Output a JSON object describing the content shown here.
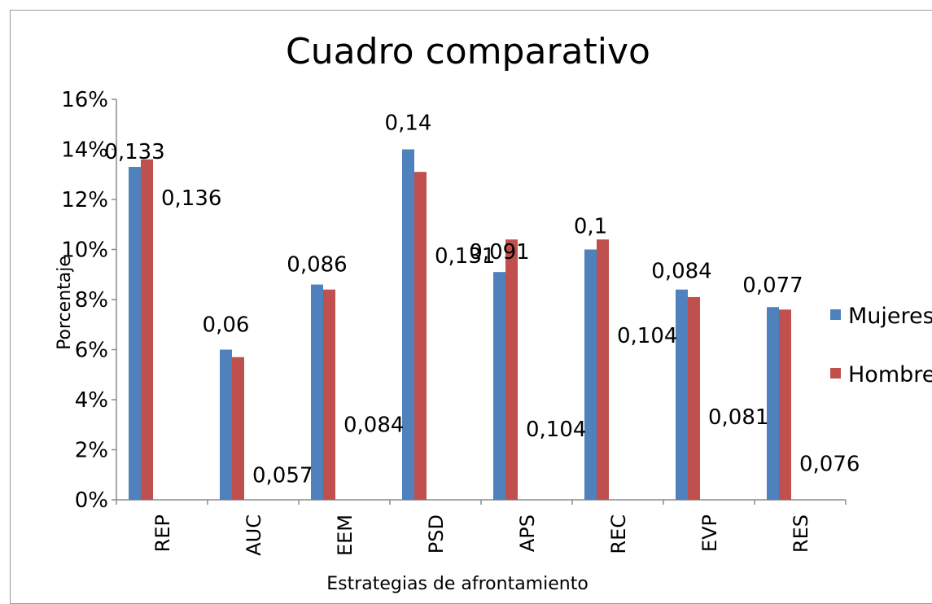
{
  "chart_data": {
    "type": "bar",
    "title": "Cuadro comparativo",
    "xlabel": "Estrategias de afrontamiento",
    "ylabel": "Porcentaje",
    "categories": [
      "REP",
      "AUC",
      "EEM",
      "PSD",
      "APS",
      "REC",
      "EVP",
      "RES"
    ],
    "ylim": [
      0,
      0.16
    ],
    "yticks": [
      "0%",
      "2%",
      "4%",
      "6%",
      "8%",
      "10%",
      "12%",
      "14%",
      "16%"
    ],
    "grid": false,
    "legend_position": "right",
    "series": [
      {
        "name": "Mujeres",
        "color": "#4f81bd",
        "values": [
          0.133,
          0.06,
          0.086,
          0.14,
          0.091,
          0.1,
          0.084,
          0.077
        ],
        "labels": [
          "0,133",
          "0,06",
          "0,086",
          "0,14",
          "0,091",
          "0,1",
          "0,084",
          "0,077"
        ]
      },
      {
        "name": "Hombres",
        "color": "#c0504d",
        "values": [
          0.136,
          0.057,
          0.084,
          0.131,
          0.104,
          0.104,
          0.081,
          0.076
        ],
        "labels": [
          "0,136",
          "0,057",
          "0,084",
          "0,131",
          "0,104",
          "0,104",
          "0,081",
          "0,076"
        ]
      }
    ]
  }
}
